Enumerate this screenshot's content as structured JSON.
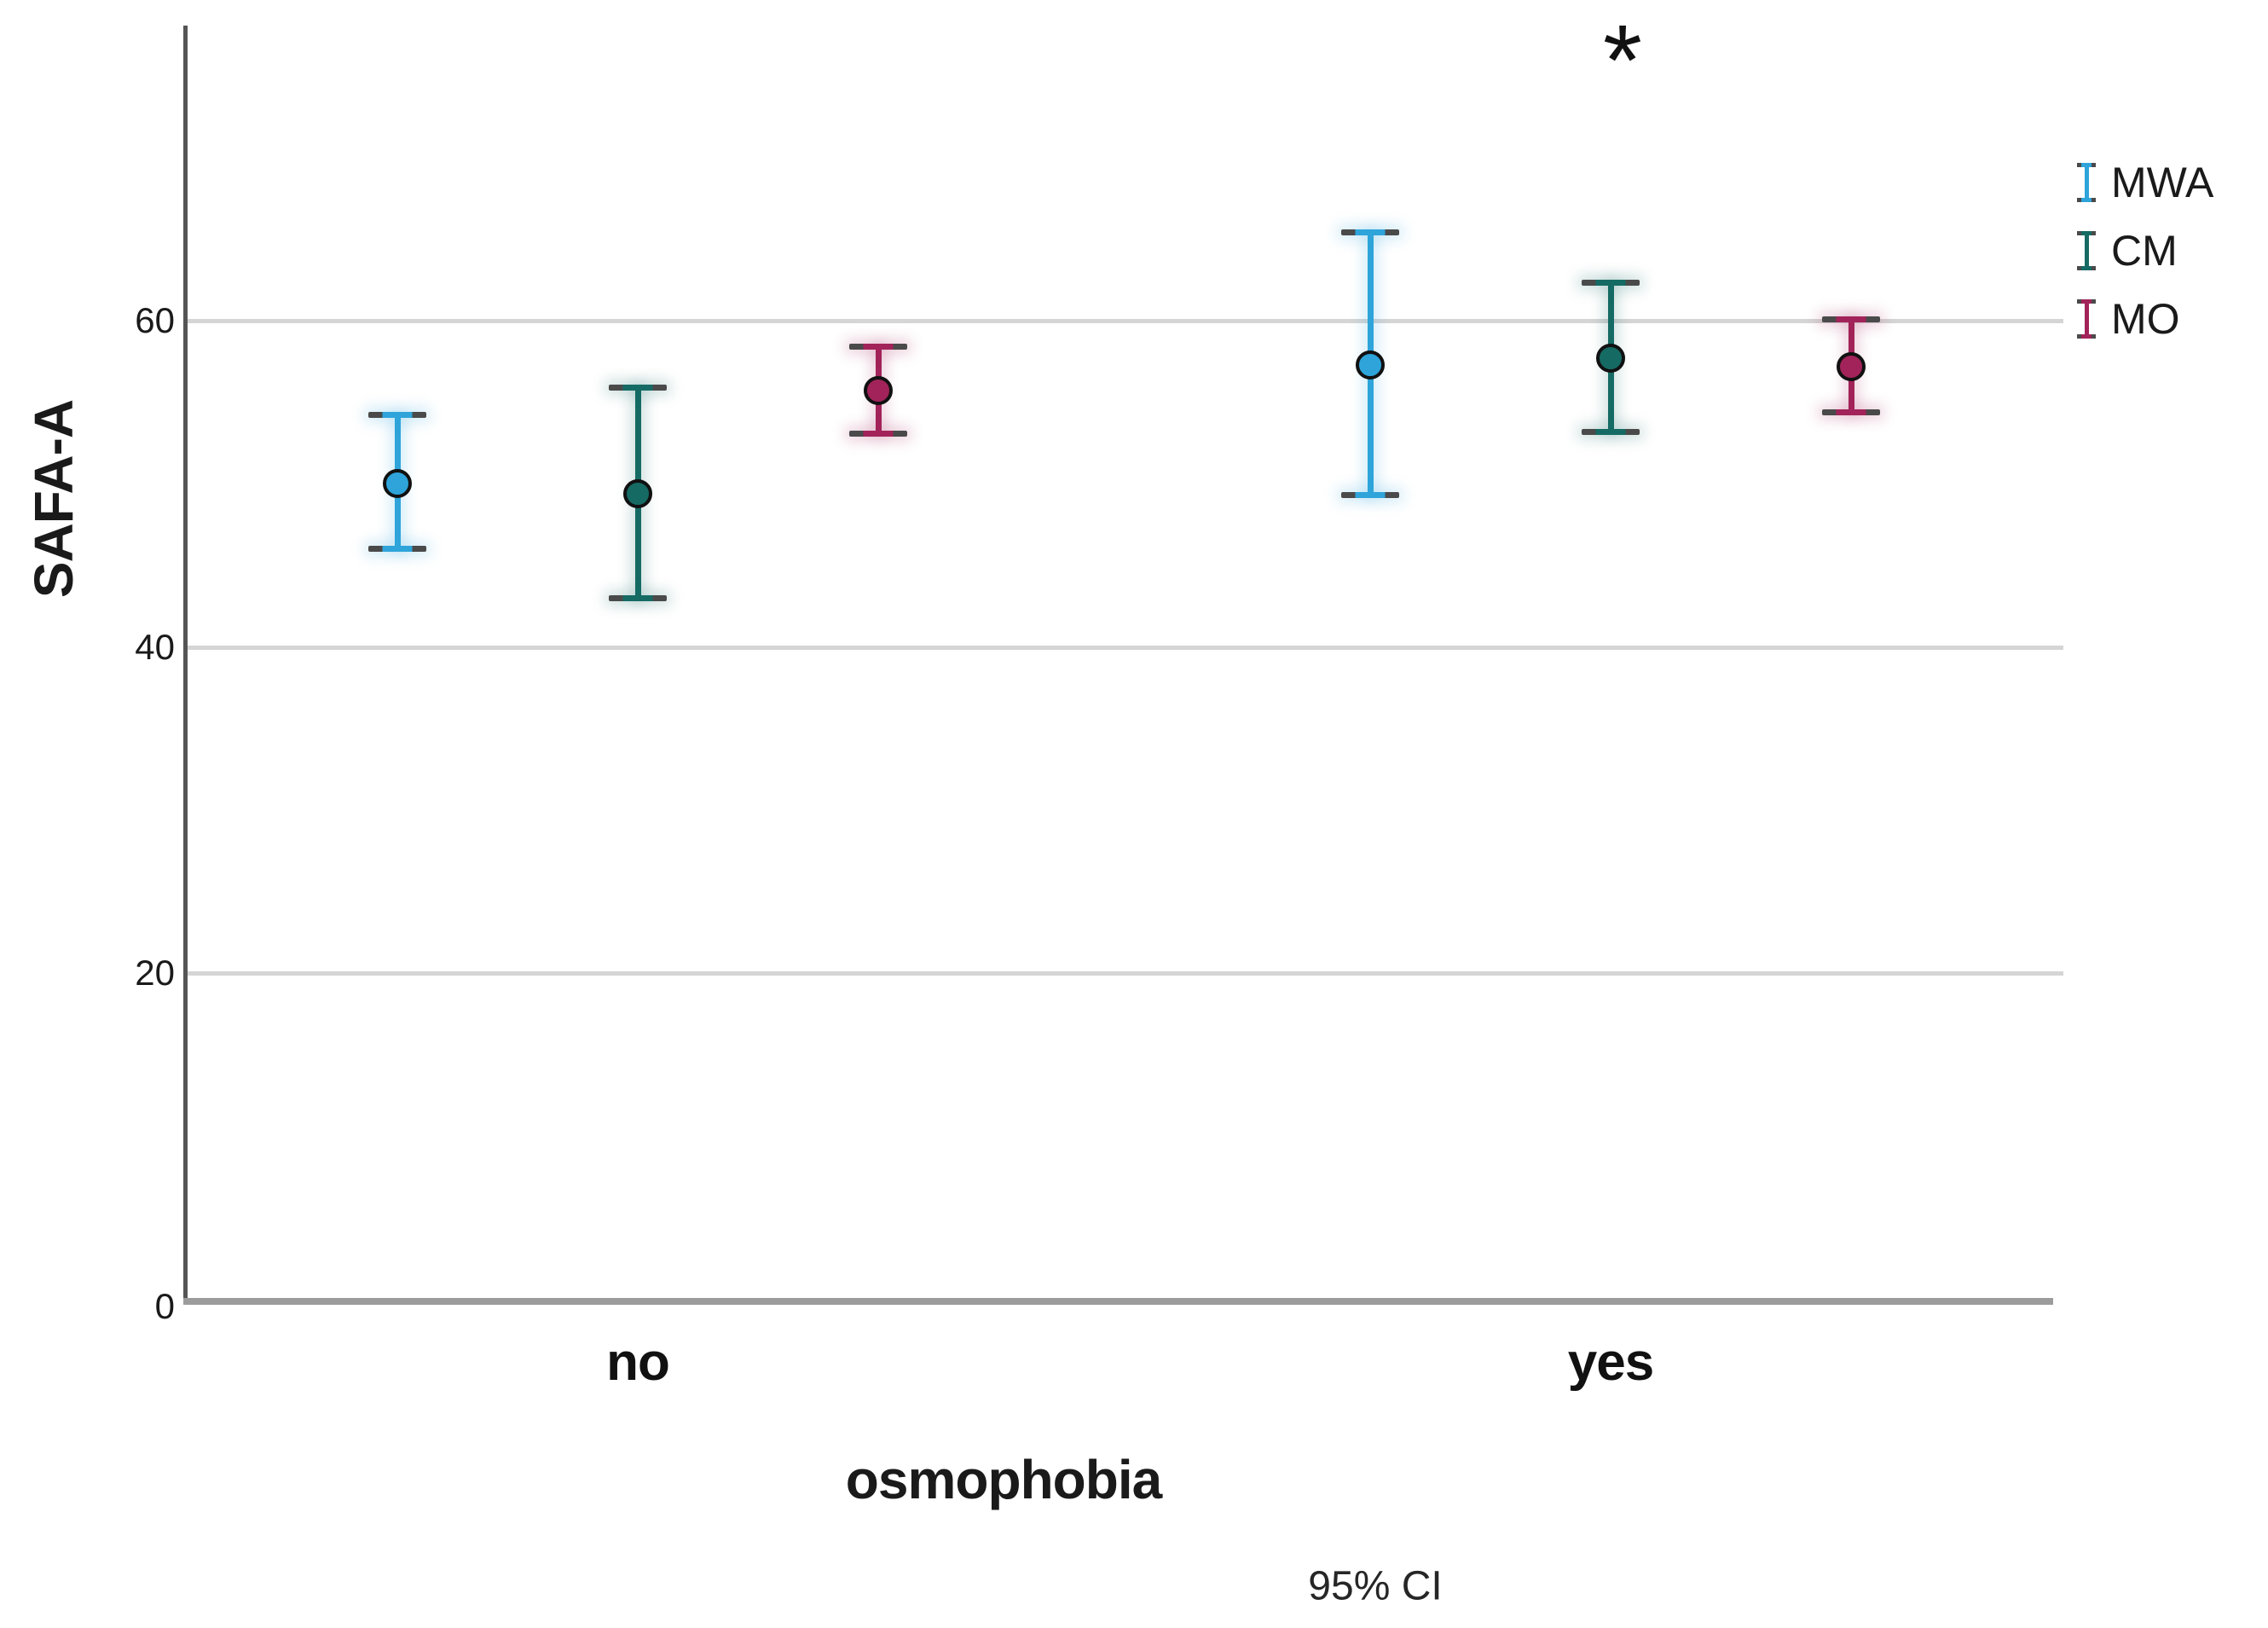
{
  "figure": {
    "ylabel": "SAFA-A",
    "xlabel": "osmophobia",
    "footnote": "95% CI",
    "annotation_text": "*"
  },
  "legend": {
    "items": [
      {
        "label": "MWA",
        "color": "#2ea4da"
      },
      {
        "label": "CM",
        "color": "#156b64"
      },
      {
        "label": "MO",
        "color": "#a22359"
      }
    ]
  },
  "chart_data": {
    "type": "errorbar",
    "title": "",
    "xlabel": "osmophobia",
    "ylabel": "SAFA-A",
    "footnote": "95% CI",
    "categories": [
      "no",
      "yes"
    ],
    "y_ticks": [
      0,
      20,
      40,
      60
    ],
    "ylim": [
      0,
      78
    ],
    "grid": "horizontal-only",
    "legend_position": "right",
    "series": [
      {
        "name": "MWA",
        "color": "#2ea4da",
        "means": [
          50.0,
          57.3
        ],
        "ci_low": [
          46.0,
          49.3
        ],
        "ci_high": [
          54.2,
          65.4
        ]
      },
      {
        "name": "CM",
        "color": "#156b64",
        "means": [
          49.4,
          57.7
        ],
        "ci_low": [
          43.0,
          53.2
        ],
        "ci_high": [
          55.9,
          62.3
        ]
      },
      {
        "name": "MO",
        "color": "#a22359",
        "means": [
          55.7,
          57.2
        ],
        "ci_low": [
          53.1,
          54.4
        ],
        "ci_high": [
          58.4,
          60.1
        ]
      }
    ],
    "annotations": [
      {
        "text": "*",
        "category": "yes",
        "series": "CM"
      }
    ]
  }
}
